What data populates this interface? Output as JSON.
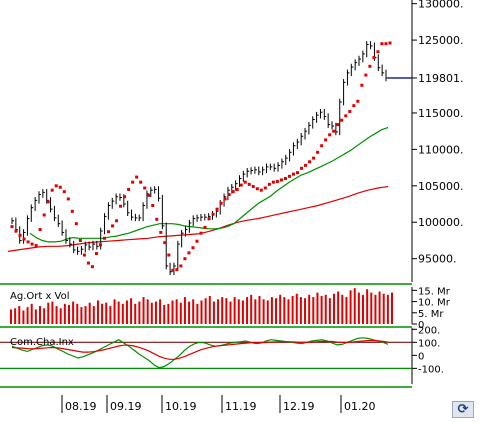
{
  "chart_data": [
    {
      "type": "line",
      "panel": "price",
      "title": "",
      "y_tick_labels": [
        "130000.",
        "125000.",
        "119801.",
        "115000.",
        "110000.",
        "105000.",
        "100000.",
        "95000."
      ],
      "y_tick_values": [
        130000,
        125000,
        119801,
        115000,
        110000,
        105000,
        100000,
        95000
      ],
      "ylim": [
        91800,
        130500
      ],
      "last_value_marker": 119801,
      "x_labels": [
        "08.19",
        "09.19",
        "10.19",
        "11.19",
        "12.19",
        "01.20"
      ],
      "series": [
        {
          "kind": "ohlc-bars",
          "color": "#000000",
          "values": [
            100200,
            99000,
            97500,
            98600,
            100500,
            102000,
            103000,
            103800,
            104100,
            103000,
            101800,
            100600,
            99800,
            98600,
            97500,
            97000,
            96200,
            96000,
            96300,
            96900,
            96600,
            97000,
            96700,
            98800,
            100800,
            102300,
            102900,
            103500,
            103400,
            102500,
            101300,
            100700,
            100600,
            100600,
            102300,
            103900,
            104400,
            104500,
            103300,
            99500,
            94000,
            93200,
            94000,
            97000,
            98500,
            99000,
            99900,
            100500,
            100600,
            100700,
            100700,
            100800,
            101100,
            101500,
            102600,
            103500,
            104400,
            104800,
            105300,
            106000,
            106600,
            107000,
            107100,
            107200,
            106900,
            107200,
            107600,
            107600,
            107400,
            107800,
            108300,
            108800,
            109600,
            110500,
            111000,
            111800,
            112500,
            113300,
            114100,
            114700,
            115100,
            114500,
            113400,
            113200,
            112400,
            116500,
            119200,
            120500,
            121300,
            121900,
            122400,
            123100,
            124400,
            124200,
            122600,
            121200,
            120500,
            119800
          ]
        },
        {
          "kind": "dotted-stop",
          "color": "#e00000",
          "values": [
            99400,
            98800,
            98200,
            97700,
            97300,
            97000,
            96800,
            99000,
            101000,
            102800,
            104400,
            105000,
            104800,
            104200,
            103200,
            101500,
            99800,
            97500,
            95500,
            94400,
            93900,
            95700,
            96900,
            97800,
            98700,
            99500,
            100200,
            102200,
            103500,
            104500,
            105500,
            106200,
            105500,
            104700,
            103700,
            102300,
            100400,
            98600,
            97200,
            95500,
            93400,
            93500,
            94000,
            95000,
            95800,
            96500,
            97400,
            98500,
            99300,
            100500,
            101100,
            101800,
            102600,
            103200,
            103800,
            104200,
            104500,
            105100,
            105500,
            105200,
            104900,
            104600,
            104400,
            104700,
            105200,
            105500,
            105600,
            105800,
            106000,
            106300,
            106600,
            106800,
            107400,
            107800,
            108300,
            108800,
            109600,
            110500,
            111300,
            112000,
            112500,
            113400,
            114000,
            114600,
            115200,
            116000,
            116600,
            118800,
            120200,
            121400,
            122600,
            123400,
            124500,
            124500,
            124600
          ]
        },
        {
          "kind": "ma-short",
          "color": "#009000",
          "values": [
            98500,
            97900,
            97500,
            97300,
            97300,
            97400,
            97700,
            97900,
            97800,
            97800,
            97800,
            97800,
            97800,
            98000,
            98100,
            98300,
            98500,
            98800,
            99100,
            99400,
            99600,
            99800,
            99800,
            99800,
            99700,
            99500,
            99400,
            99300,
            99200,
            99100,
            99100,
            99200,
            99400,
            99800,
            100500,
            101200,
            101900,
            102600,
            103100,
            103600,
            104300,
            104900,
            105500,
            106000,
            106500,
            106800,
            107200,
            107600,
            108000,
            108400,
            108900,
            109400,
            109900,
            110500,
            111100,
            111700,
            112200,
            112700,
            113000
          ]
        },
        {
          "kind": "ma-long",
          "color": "#e00000",
          "values": [
            96000,
            96200,
            96400,
            96600,
            96700,
            96700,
            96800,
            97000,
            97200,
            97300,
            97400,
            97500,
            97600,
            97700,
            97800,
            98000,
            98100,
            98200,
            98300,
            98400,
            98700,
            99100,
            99600,
            100000,
            100300,
            100500,
            100800,
            101100,
            101400,
            101700,
            102000,
            102300,
            102700,
            103100,
            103500,
            104000,
            104400,
            104700,
            104900
          ]
        }
      ]
    },
    {
      "type": "bar",
      "panel": "volume",
      "title": "Ag.Ort x Vol",
      "y_tick_labels": [
        "15. Mr",
        "10. Mr",
        "5. Mr",
        "0"
      ],
      "y_tick_values": [
        15,
        10,
        5,
        0
      ],
      "ylim": [
        0,
        16.5
      ],
      "unit": "Mr",
      "series": [
        {
          "color": "#e00000",
          "values": [
            6.5,
            7,
            8,
            6,
            7.5,
            9,
            6.5,
            8,
            7,
            9.5,
            10,
            8,
            7,
            9,
            8.5,
            10,
            9,
            7.5,
            8,
            9.5,
            8,
            10.5,
            9,
            9.5,
            8,
            11,
            10,
            9,
            10.5,
            11.5,
            9,
            10,
            12,
            11,
            9.5,
            10,
            11,
            8.5,
            9,
            10.5,
            11,
            9.5,
            12,
            10,
            11,
            9,
            10.5,
            11.5,
            12.5,
            10,
            11,
            12,
            11.5,
            10,
            12,
            11,
            10.5,
            12,
            13,
            11,
            12.5,
            11,
            10.5,
            12,
            11.5,
            13,
            12,
            11,
            12.5,
            13.5,
            12,
            11.5,
            13,
            12,
            14,
            12.5,
            13,
            11.5,
            13.5,
            14.5,
            13,
            12,
            15,
            16,
            14,
            13,
            15.5,
            14,
            13,
            14.5,
            13.5,
            13,
            14
          ]
        }
      ]
    },
    {
      "type": "line",
      "panel": "oscillator",
      "title": "Com.Cha.Inx",
      "y_tick_labels": [
        "200.",
        "100.",
        "0",
        "-100."
      ],
      "y_tick_values": [
        200,
        100,
        0,
        -100
      ],
      "ylim": [
        -220,
        210
      ],
      "reference_lines": [
        100,
        -100
      ],
      "series": [
        {
          "color": "#009000",
          "values": [
            70,
            55,
            40,
            30,
            45,
            60,
            75,
            80,
            70,
            50,
            30,
            10,
            -5,
            -20,
            -10,
            5,
            20,
            40,
            60,
            80,
            100,
            120,
            95,
            70,
            40,
            10,
            -15,
            -40,
            -75,
            -95,
            -85,
            -60,
            -30,
            0,
            40,
            70,
            90,
            100,
            95,
            80,
            70,
            75,
            85,
            95,
            100,
            105,
            110,
            100,
            90,
            95,
            110,
            120,
            115,
            110,
            105,
            100,
            95,
            90,
            100,
            110,
            115,
            120,
            110,
            95,
            80,
            85,
            100,
            115,
            130,
            135,
            130,
            120,
            110,
            100,
            85
          ]
        },
        {
          "color": "#e00000",
          "values": [
            60,
            58,
            56,
            52,
            50,
            52,
            55,
            58,
            60,
            58,
            52,
            45,
            38,
            30,
            25,
            25,
            28,
            34,
            42,
            52,
            62,
            72,
            78,
            78,
            72,
            62,
            48,
            32,
            12,
            -8,
            -22,
            -30,
            -30,
            -22,
            -8,
            8,
            24,
            40,
            52,
            62,
            70,
            74,
            78,
            82,
            86,
            90,
            94,
            96,
            96,
            97,
            99,
            102,
            104,
            105,
            105,
            104,
            102,
            100,
            100,
            101,
            104,
            107,
            108,
            106,
            102,
            100,
            100,
            102,
            106,
            110,
            113,
            114,
            112,
            108,
            102
          ]
        }
      ]
    }
  ]
}
